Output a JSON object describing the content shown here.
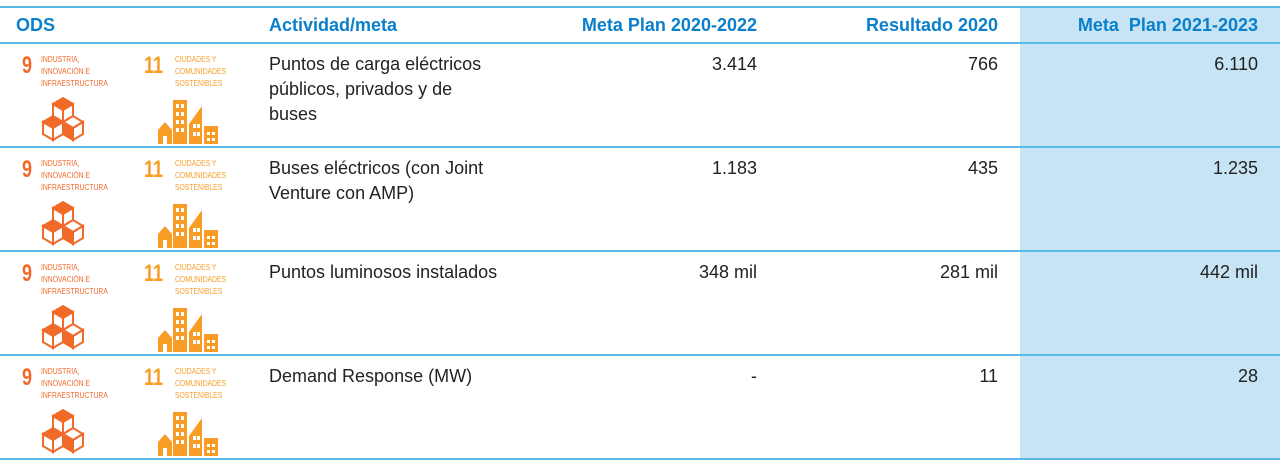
{
  "headers": {
    "ods": "ODS",
    "actividad": "Actividad/meta",
    "meta2022": "Meta Plan 2020-2022",
    "resultado": "Resultado 2020",
    "meta2023": "Meta  Plan 2021-2023"
  },
  "sdg9": {
    "number": "9",
    "label": "Industria, innovación e infraestructura",
    "color": "#f26a2a",
    "icon": "cubes-icon"
  },
  "sdg11": {
    "number": "11",
    "label": "Ciudades y comunidades sostenibles",
    "color": "#f99c26",
    "icon": "city-buildings-icon"
  },
  "rows": [
    {
      "actividad": "Puntos de carga eléctricos públicos, privados y de buses",
      "meta2022": "3.414",
      "resultado": "766",
      "meta2023": "6.110"
    },
    {
      "actividad": "Buses eléctricos (con Joint Venture con AMP)",
      "meta2022": "1.183",
      "resultado": "435",
      "meta2023": "1.235"
    },
    {
      "actividad": "Puntos luminosos instalados",
      "meta2022": "348 mil",
      "resultado": "281 mil",
      "meta2023": "442 mil"
    },
    {
      "actividad": "Demand Response (MW)",
      "meta2022": "-",
      "resultado": "11",
      "meta2023": "28"
    }
  ]
}
